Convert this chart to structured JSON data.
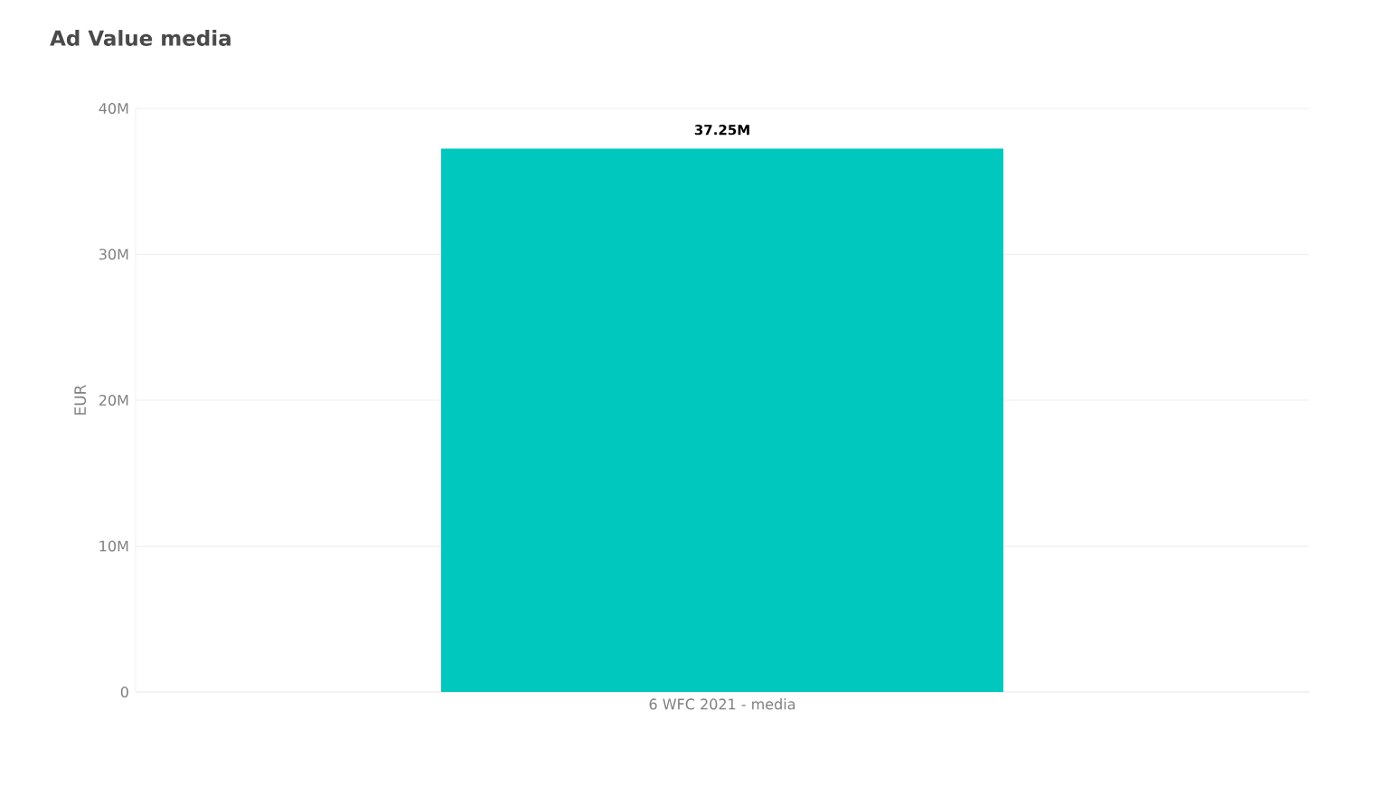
{
  "chart_data": {
    "type": "bar",
    "title": "Ad Value media",
    "ylabel": "EUR",
    "categories": [
      "6 WFC 2021 - media"
    ],
    "values": [
      37.25
    ],
    "value_labels": [
      "37.25M"
    ],
    "color": "#00c8be",
    "ylim": [
      0,
      40
    ],
    "yticks": [
      0,
      {
        "value": 10,
        "label": "10M"
      },
      {
        "value": 20,
        "label": "20M"
      },
      {
        "value": 30,
        "label": "30M"
      },
      {
        "value": 40,
        "label": "40M"
      }
    ],
    "grid": "y"
  }
}
